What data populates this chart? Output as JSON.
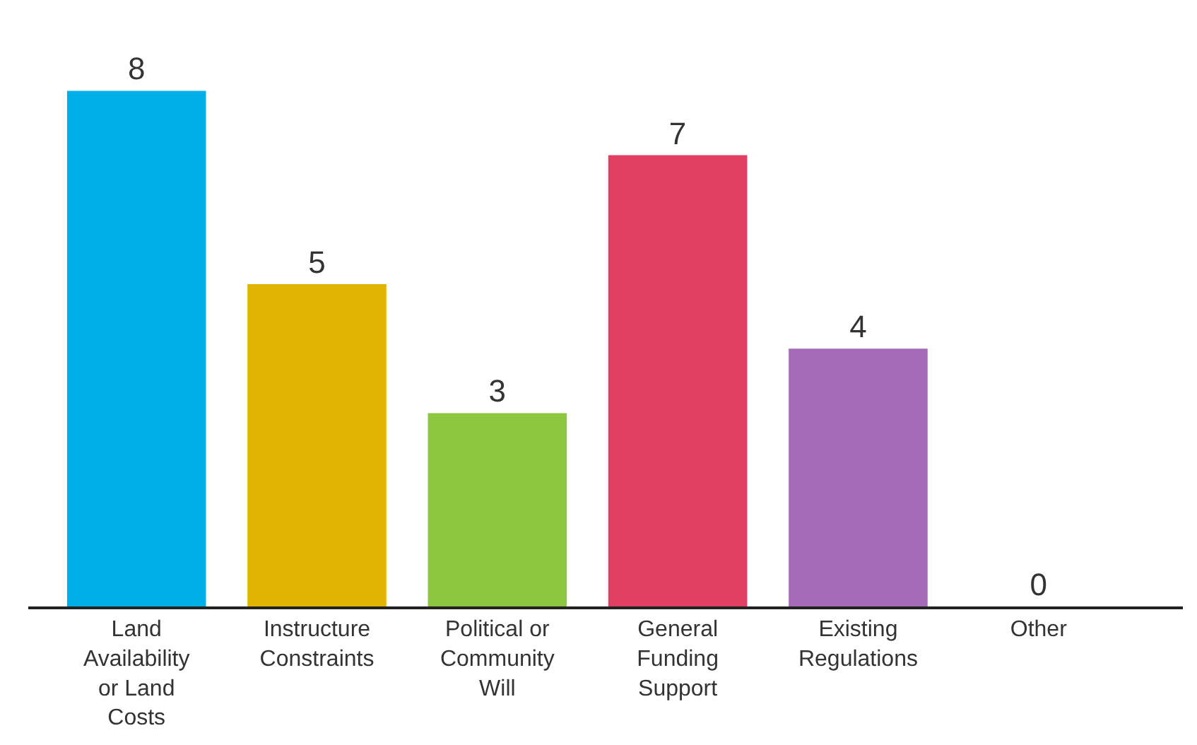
{
  "chart_data": {
    "type": "bar",
    "categories": [
      "Land Availability or Land Costs",
      "Instructure Constraints",
      "Political or Community Will",
      "General Funding Support",
      "Existing Regulations",
      "Other"
    ],
    "values": [
      8,
      5,
      3,
      7,
      4,
      0
    ],
    "colors": [
      "#00aee8",
      "#e0b400",
      "#8dc63f",
      "#e03e63",
      "#a66bb8",
      "#a66bb8"
    ],
    "data_labels": true,
    "tick_labels": "x"
  }
}
